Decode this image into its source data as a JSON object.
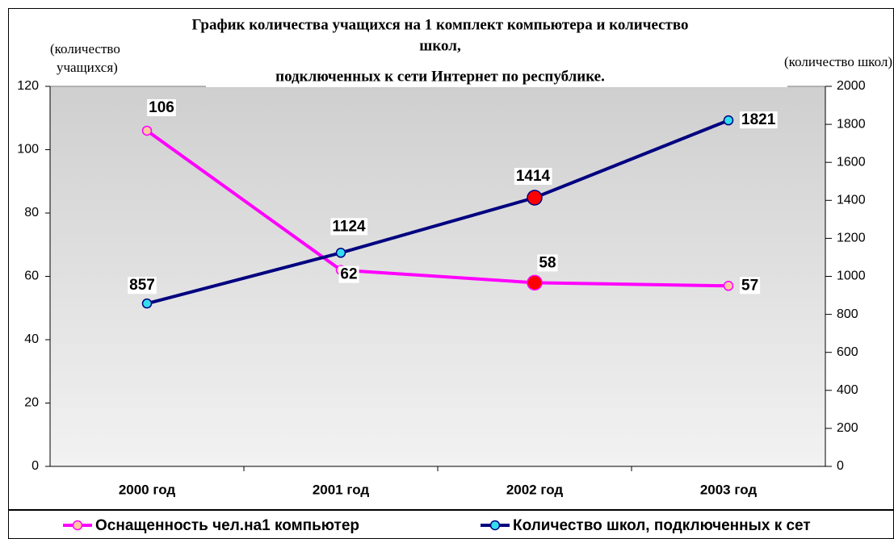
{
  "chart_data": {
    "type": "line",
    "title": [
      "График количества учащихся на 1 комплект компьютера и количество",
      "школ,",
      "подключенных к сети Интернет по республике."
    ],
    "y_label": [
      "(количество",
      "учащихся)"
    ],
    "y2_label": "(количество школ)",
    "categories": [
      "2000 год",
      "2001 год",
      "2002 год",
      "2003 год"
    ],
    "series": [
      {
        "name": "Оснащенность чел.на1 компьютер",
        "color": "#ff00ff",
        "marker_colors": [
          "#ffc8a0",
          "#ffc8a0",
          "#ff0000",
          "#ffc8a0"
        ],
        "values": [
          106,
          62,
          58,
          57
        ]
      },
      {
        "name": "Количество школ, подключенных к сет",
        "color": "#000080",
        "marker_colors": [
          "#33ddee",
          "#33ddee",
          "#ff0000",
          "#33ddee"
        ],
        "values": [
          857,
          1124,
          1414,
          1821
        ],
        "axis": "y2"
      }
    ],
    "ylim": [
      0,
      120
    ],
    "yticks": [
      0,
      20,
      40,
      60,
      80,
      100,
      120
    ],
    "y2lim": [
      0,
      2000
    ],
    "y2ticks": [
      0,
      200,
      400,
      600,
      800,
      1000,
      1200,
      1400,
      1600,
      1800,
      2000
    ],
    "legend": "bottom"
  }
}
